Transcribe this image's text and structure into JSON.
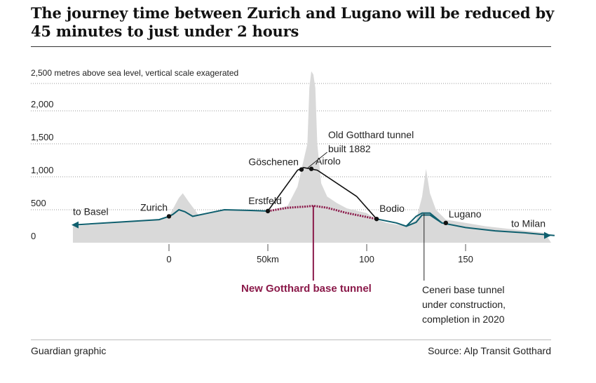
{
  "header": {
    "title": "The journey time between Zurich and Lugano will be reduced by 45 minutes to just under 2 hours"
  },
  "footer": {
    "credit": "Guardian graphic",
    "source": "Source: Alp Transit Gotthard"
  },
  "colors": {
    "terrain": "#d9d9d9",
    "route": "#0f5f6e",
    "new_tunnel": "#8b1a4a",
    "grid": "#999999"
  },
  "chart_data": {
    "type": "area",
    "ylabel": "2,500 metres above sea level, vertical scale exagerated",
    "y_ticks": [
      "0",
      "500",
      "1,000",
      "1,500",
      "2,000"
    ],
    "y_tick_values": [
      0,
      500,
      1000,
      1500,
      2000
    ],
    "x_ticks": [
      "0",
      "50km",
      "100",
      "150"
    ],
    "x_tick_values": [
      0,
      50,
      100,
      150
    ],
    "xlim": [
      -50,
      195
    ],
    "ylim": [
      0,
      2600
    ],
    "terrain_profile": {
      "x": [
        -50,
        -5,
        0,
        5,
        7,
        10,
        15,
        25,
        30,
        50,
        60,
        65,
        70,
        71,
        72,
        73,
        74,
        75,
        77,
        80,
        85,
        90,
        100,
        105,
        110,
        120,
        125,
        128,
        130,
        132,
        135,
        140,
        150,
        160,
        175,
        190
      ],
      "y": [
        250,
        350,
        400,
        680,
        750,
        620,
        420,
        480,
        500,
        480,
        560,
        850,
        1500,
        2350,
        2600,
        2550,
        2350,
        1500,
        900,
        700,
        600,
        520,
        450,
        350,
        300,
        250,
        350,
        700,
        1120,
        750,
        500,
        350,
        300,
        250,
        200,
        150
      ]
    },
    "route": {
      "x": [
        -50,
        -5,
        0,
        2,
        5,
        8,
        12,
        20,
        28,
        40,
        50
      ],
      "y": [
        270,
        350,
        400,
        430,
        500,
        470,
        400,
        450,
        500,
        490,
        480
      ]
    },
    "old_gotthard_line": {
      "x": [
        50,
        65,
        68,
        75,
        95,
        105
      ],
      "y": [
        480,
        1100,
        1140,
        1100,
        700,
        360
      ]
    },
    "new_base_tunnel": {
      "x": [
        50,
        60,
        70,
        73,
        80,
        90,
        105
      ],
      "y": [
        480,
        530,
        550,
        560,
        530,
        450,
        360
      ]
    },
    "south_route": {
      "x": [
        105,
        115,
        120,
        125,
        128,
        132,
        138,
        150,
        165,
        180,
        195
      ],
      "y": [
        360,
        300,
        250,
        310,
        420,
        420,
        300,
        230,
        180,
        150,
        110
      ]
    },
    "ceneri_surface": {
      "x": [
        120,
        125,
        128,
        132,
        138
      ],
      "y": [
        250,
        400,
        450,
        450,
        300
      ]
    },
    "stations": [
      {
        "name": "Zurich",
        "x": 0,
        "y": 400
      },
      {
        "name": "Erstfeld",
        "x": 50,
        "y": 480
      },
      {
        "name": "Göschenen",
        "x": 67,
        "y": 1110
      },
      {
        "name": "Airolo",
        "x": 72,
        "y": 1120
      },
      {
        "name": "Bodio",
        "x": 105,
        "y": 360
      },
      {
        "name": "Lugano",
        "x": 140,
        "y": 300
      }
    ],
    "end_labels": {
      "left": "to Basel",
      "right": "to Milan"
    },
    "annotations": {
      "old_tunnel": [
        "Old Gotthard tunnel",
        "built 1882"
      ],
      "new_tunnel": "New Gotthard base tunnel",
      "ceneri": [
        "Ceneri base tunnel",
        "under construction,",
        "completion in 2020"
      ]
    }
  }
}
